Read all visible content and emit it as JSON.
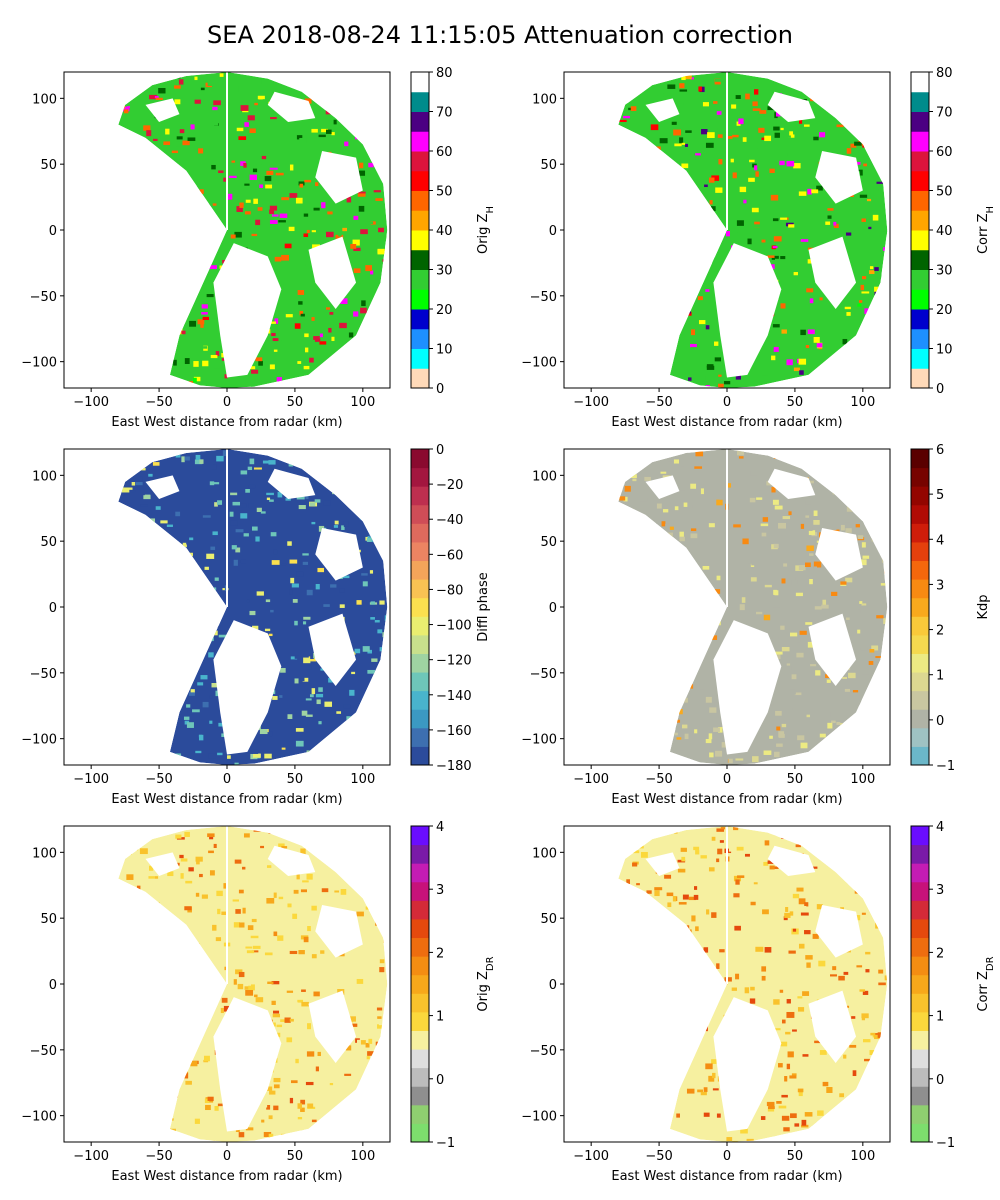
{
  "figure": {
    "title": "SEA 2018-08-24 11:15:05 Attenuation correction"
  },
  "chart_data": [
    {
      "type": "heatmap",
      "xlabel": "East West distance from radar (km)",
      "ylabel": "",
      "xlim": [
        -120,
        120
      ],
      "ylim": [
        -120,
        120
      ],
      "xticks": [
        "−100",
        "−50",
        "0",
        "50",
        "100"
      ],
      "yticks": [
        "−100",
        "−50",
        "0",
        "50",
        "100"
      ],
      "colorbar": {
        "label_main": "Orig Z",
        "label_sub": "H",
        "range": [
          0,
          80
        ],
        "ticks": [
          "0",
          "10",
          "20",
          "30",
          "40",
          "50",
          "60",
          "70",
          "80"
        ],
        "colors": [
          "#ffdab9",
          "#00ffff",
          "#1e90ff",
          "#0000cd",
          "#00ff00",
          "#32cd32",
          "#006400",
          "#ffff00",
          "#ffa500",
          "#ff6600",
          "#ff0000",
          "#dc143c",
          "#ff00ff",
          "#4b0082",
          "#008b8b",
          "#ffffff"
        ]
      },
      "colormap_samples": [
        0.35,
        0.45,
        0.6,
        0.75
      ],
      "grid": false
    },
    {
      "type": "heatmap",
      "xlabel": "East West distance from radar (km)",
      "ylabel": "",
      "xlim": [
        -120,
        120
      ],
      "ylim": [
        -120,
        120
      ],
      "xticks": [
        "−100",
        "−50",
        "0",
        "50",
        "100"
      ],
      "yticks": [
        "−100",
        "−50",
        "0",
        "50",
        "100"
      ],
      "colorbar": {
        "label_main": "Corr Z",
        "label_sub": "H",
        "range": [
          0,
          80
        ],
        "ticks": [
          "0",
          "10",
          "20",
          "30",
          "40",
          "50",
          "60",
          "70",
          "80"
        ],
        "colors": [
          "#ffdab9",
          "#00ffff",
          "#1e90ff",
          "#0000cd",
          "#00ff00",
          "#32cd32",
          "#006400",
          "#ffff00",
          "#ffa500",
          "#ff6600",
          "#ff0000",
          "#dc143c",
          "#ff00ff",
          "#4b0082",
          "#008b8b",
          "#ffffff"
        ]
      },
      "colormap_samples": [
        0.35,
        0.45,
        0.6,
        0.8
      ],
      "grid": false
    },
    {
      "type": "heatmap",
      "xlabel": "East West distance from radar (km)",
      "ylabel": "",
      "xlim": [
        -120,
        120
      ],
      "ylim": [
        -120,
        120
      ],
      "xticks": [
        "−100",
        "−50",
        "0",
        "50",
        "100"
      ],
      "yticks": [
        "−100",
        "−50",
        "0",
        "50",
        "100"
      ],
      "colorbar": {
        "label_main": "Diffl phase",
        "label_sub": "",
        "range": [
          -180,
          0
        ],
        "ticks": [
          "−180",
          "−160",
          "−140",
          "−120",
          "−100",
          "−80",
          "−60",
          "−40",
          "−20",
          "0"
        ],
        "colors": [
          "#2b4b9b",
          "#3d6fb0",
          "#3b99c2",
          "#49b4cc",
          "#6ec6b9",
          "#9fd3a2",
          "#c8e08c",
          "#eaee70",
          "#fbe04f",
          "#f9c253",
          "#f4a45a",
          "#ec8462",
          "#df6a5d",
          "#cf4d57",
          "#bd2f4f",
          "#a3163f",
          "#8a0a2f"
        ]
      },
      "colormap_samples": [
        0.05,
        0.22,
        0.3,
        0.45
      ],
      "grid": false
    },
    {
      "type": "heatmap",
      "xlabel": "East West distance from radar (km)",
      "ylabel": "",
      "xlim": [
        -120,
        120
      ],
      "ylim": [
        -120,
        120
      ],
      "xticks": [
        "−100",
        "−50",
        "0",
        "50",
        "100"
      ],
      "yticks": [
        "−100",
        "−50",
        "0",
        "50",
        "100"
      ],
      "colorbar": {
        "label_main": "Kdp",
        "label_sub": "",
        "range": [
          -1,
          6
        ],
        "ticks": [
          "−1",
          "0",
          "1",
          "2",
          "3",
          "4",
          "5",
          "6"
        ],
        "colors": [
          "#6bb7c9",
          "#9fc2c3",
          "#b0b3a6",
          "#c9c6a1",
          "#dcd891",
          "#ecea83",
          "#f5d94f",
          "#f9c93a",
          "#f9a91d",
          "#f88a12",
          "#f4670c",
          "#e5400c",
          "#cf1d0a",
          "#b10b05",
          "#930500",
          "#770300",
          "#5a0000"
        ]
      },
      "colormap_samples": [
        0.16,
        0.2,
        0.3,
        0.55
      ],
      "grid": false
    },
    {
      "type": "heatmap",
      "xlabel": "East West distance from radar (km)",
      "ylabel": "",
      "xlim": [
        -120,
        120
      ],
      "ylim": [
        -120,
        120
      ],
      "xticks": [
        "−100",
        "−50",
        "0",
        "50",
        "100"
      ],
      "yticks": [
        "−100",
        "−50",
        "0",
        "50",
        "100"
      ],
      "colorbar": {
        "label_main": "Orig Z",
        "label_sub": "DR",
        "range": [
          -1,
          4
        ],
        "ticks": [
          "−1",
          "0",
          "1",
          "2",
          "3",
          "4"
        ],
        "colors": [
          "#7dde6d",
          "#8fcf70",
          "#8f8f8f",
          "#bcbcbc",
          "#dedede",
          "#f6f0a0",
          "#fbd83c",
          "#f9c22c",
          "#f7a81b",
          "#f48d12",
          "#ee6d0f",
          "#e5490d",
          "#d42a38",
          "#c7127a",
          "#c41cb4",
          "#7a1aa8",
          "#6a0dff"
        ]
      },
      "colormap_samples": [
        0.35,
        0.42,
        0.5,
        0.62
      ],
      "grid": false
    },
    {
      "type": "heatmap",
      "xlabel": "East West distance from radar (km)",
      "ylabel": "",
      "xlim": [
        -120,
        120
      ],
      "ylim": [
        -120,
        120
      ],
      "xticks": [
        "−100",
        "−50",
        "0",
        "50",
        "100"
      ],
      "yticks": [
        "−100",
        "−50",
        "0",
        "50",
        "100"
      ],
      "colorbar": {
        "label_main": "Corr Z",
        "label_sub": "DR",
        "range": [
          -1,
          4
        ],
        "ticks": [
          "−1",
          "0",
          "1",
          "2",
          "3",
          "4"
        ],
        "colors": [
          "#7dde6d",
          "#8fcf70",
          "#8f8f8f",
          "#bcbcbc",
          "#dedede",
          "#f6f0a0",
          "#fbd83c",
          "#f9c22c",
          "#f7a81b",
          "#f48d12",
          "#ee6d0f",
          "#e5490d",
          "#d42a38",
          "#c7127a",
          "#c41cb4",
          "#7a1aa8",
          "#6a0dff"
        ]
      },
      "colormap_samples": [
        0.35,
        0.45,
        0.55,
        0.65
      ],
      "grid": false
    }
  ]
}
